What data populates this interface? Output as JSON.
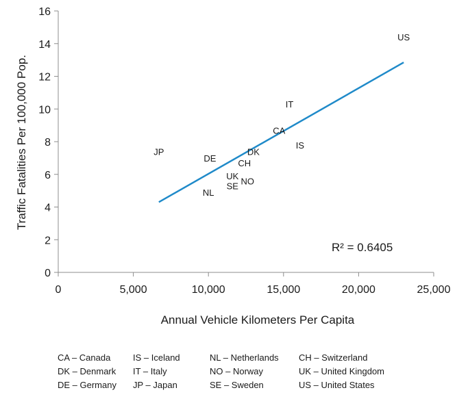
{
  "chart_data": {
    "type": "scatter",
    "xlabel": "Annual Vehicle Kilometers Per Capita",
    "ylabel": "Traffic Fatalities Per 100,000 Pop.",
    "xlim": [
      0,
      25000
    ],
    "ylim": [
      0,
      16
    ],
    "x_ticks": [
      0,
      5000,
      10000,
      15000,
      20000,
      25000
    ],
    "x_tick_labels": [
      "0",
      "5,000",
      "10,000",
      "15,000",
      "20,000",
      "25,000"
    ],
    "y_ticks": [
      0,
      2,
      4,
      6,
      8,
      10,
      12,
      14,
      16
    ],
    "y_tick_labels": [
      "0",
      "2",
      "4",
      "6",
      "8",
      "10",
      "12",
      "14",
      "16"
    ],
    "grid": false,
    "points": [
      {
        "label": "US",
        "x": 23000,
        "y": 14.4
      },
      {
        "label": "IT",
        "x": 15400,
        "y": 10.3
      },
      {
        "label": "CA",
        "x": 14700,
        "y": 8.7
      },
      {
        "label": "IS",
        "x": 16100,
        "y": 7.8
      },
      {
        "label": "JP",
        "x": 6700,
        "y": 7.4
      },
      {
        "label": "DE",
        "x": 10100,
        "y": 7.0
      },
      {
        "label": "DK",
        "x": 13000,
        "y": 7.4
      },
      {
        "label": "CH",
        "x": 12400,
        "y": 6.7
      },
      {
        "label": "UK",
        "x": 11600,
        "y": 5.9
      },
      {
        "label": "NO",
        "x": 12600,
        "y": 5.6
      },
      {
        "label": "SE",
        "x": 11600,
        "y": 5.3
      },
      {
        "label": "NL",
        "x": 10000,
        "y": 4.9
      }
    ],
    "trendline": {
      "x": [
        6700,
        23000
      ],
      "y": [
        4.3,
        12.85
      ],
      "color": "#1f8ac9"
    },
    "r_squared_label": "R² = 0.6405"
  },
  "legend": [
    "CA – Canada",
    "IS – Iceland",
    "NL – Netherlands",
    "CH – Switzerland",
    "DK – Denmark",
    "IT – Italy",
    "NO – Norway",
    "UK – United Kingdom",
    "DE – Germany",
    "JP – Japan",
    "SE – Sweden",
    "US – United States"
  ]
}
